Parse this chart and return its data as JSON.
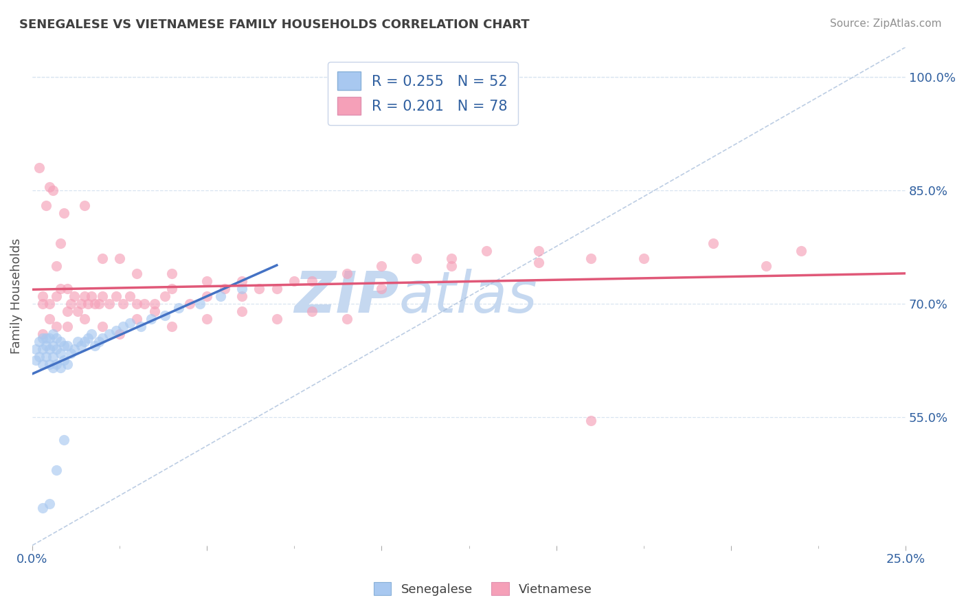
{
  "title": "SENEGALESE VS VIETNAMESE FAMILY HOUSEHOLDS CORRELATION CHART",
  "source_text": "Source: ZipAtlas.com",
  "ylabel": "Family Households",
  "xlim": [
    0.0,
    0.25
  ],
  "ylim": [
    0.38,
    1.04
  ],
  "xtick_major": [
    0.0,
    0.05,
    0.1,
    0.15,
    0.2,
    0.25
  ],
  "xticklabels_show": {
    "0.0": "0.0%",
    "0.25": "25.0%"
  },
  "ytick_positions": [
    0.55,
    0.7,
    0.85,
    1.0
  ],
  "yticklabels": [
    "55.0%",
    "70.0%",
    "85.0%",
    "100.0%"
  ],
  "senegalese_R": 0.255,
  "senegalese_N": 52,
  "vietnamese_R": 0.201,
  "vietnamese_N": 78,
  "senegalese_dot_color": "#a8c8f0",
  "vietnamese_dot_color": "#f5a0b8",
  "senegalese_line_color": "#4472c4",
  "vietnamese_line_color": "#e05878",
  "diag_line_color": "#a0b8d8",
  "watermark_color": "#c5d8f0",
  "watermark_text": "ZIPatlas",
  "grid_color": "#d8e4f0",
  "tick_color": "#3060a0",
  "title_color": "#404040",
  "source_color": "#909090",
  "legend_R_color": "#3060a0",
  "legend_N_color": "#3060a0",
  "senegalese_x": [
    0.001,
    0.001,
    0.002,
    0.002,
    0.003,
    0.003,
    0.003,
    0.004,
    0.004,
    0.004,
    0.005,
    0.005,
    0.005,
    0.006,
    0.006,
    0.006,
    0.006,
    0.007,
    0.007,
    0.007,
    0.008,
    0.008,
    0.008,
    0.009,
    0.009,
    0.01,
    0.01,
    0.011,
    0.012,
    0.013,
    0.014,
    0.015,
    0.016,
    0.017,
    0.018,
    0.019,
    0.02,
    0.022,
    0.024,
    0.026,
    0.028,
    0.031,
    0.034,
    0.038,
    0.042,
    0.048,
    0.054,
    0.06,
    0.003,
    0.005,
    0.007,
    0.009
  ],
  "senegalese_y": [
    0.625,
    0.64,
    0.63,
    0.65,
    0.62,
    0.64,
    0.655,
    0.63,
    0.645,
    0.655,
    0.62,
    0.64,
    0.655,
    0.615,
    0.63,
    0.645,
    0.66,
    0.62,
    0.64,
    0.655,
    0.615,
    0.635,
    0.65,
    0.625,
    0.645,
    0.62,
    0.645,
    0.635,
    0.64,
    0.65,
    0.645,
    0.65,
    0.655,
    0.66,
    0.645,
    0.65,
    0.655,
    0.66,
    0.665,
    0.67,
    0.675,
    0.67,
    0.68,
    0.685,
    0.695,
    0.7,
    0.71,
    0.72,
    0.43,
    0.435,
    0.48,
    0.52
  ],
  "vietnamese_x": [
    0.002,
    0.003,
    0.003,
    0.004,
    0.005,
    0.005,
    0.006,
    0.007,
    0.007,
    0.008,
    0.008,
    0.009,
    0.01,
    0.01,
    0.011,
    0.012,
    0.013,
    0.014,
    0.015,
    0.016,
    0.017,
    0.018,
    0.019,
    0.02,
    0.022,
    0.024,
    0.026,
    0.028,
    0.03,
    0.032,
    0.035,
    0.038,
    0.04,
    0.045,
    0.05,
    0.055,
    0.06,
    0.065,
    0.07,
    0.075,
    0.08,
    0.09,
    0.1,
    0.11,
    0.12,
    0.13,
    0.145,
    0.16,
    0.175,
    0.195,
    0.21,
    0.22,
    0.003,
    0.005,
    0.007,
    0.01,
    0.015,
    0.02,
    0.025,
    0.03,
    0.035,
    0.04,
    0.05,
    0.06,
    0.07,
    0.08,
    0.09,
    0.1,
    0.015,
    0.02,
    0.025,
    0.03,
    0.04,
    0.05,
    0.06,
    0.12,
    0.145,
    0.16
  ],
  "vietnamese_y": [
    0.88,
    0.7,
    0.71,
    0.83,
    0.855,
    0.7,
    0.85,
    0.75,
    0.71,
    0.78,
    0.72,
    0.82,
    0.69,
    0.72,
    0.7,
    0.71,
    0.69,
    0.7,
    0.71,
    0.7,
    0.71,
    0.7,
    0.7,
    0.71,
    0.7,
    0.71,
    0.7,
    0.71,
    0.7,
    0.7,
    0.7,
    0.71,
    0.72,
    0.7,
    0.71,
    0.72,
    0.71,
    0.72,
    0.72,
    0.73,
    0.73,
    0.74,
    0.75,
    0.76,
    0.76,
    0.77,
    0.77,
    0.76,
    0.76,
    0.78,
    0.75,
    0.77,
    0.66,
    0.68,
    0.67,
    0.67,
    0.68,
    0.67,
    0.66,
    0.68,
    0.69,
    0.67,
    0.68,
    0.69,
    0.68,
    0.69,
    0.68,
    0.72,
    0.83,
    0.76,
    0.76,
    0.74,
    0.74,
    0.73,
    0.73,
    0.75,
    0.755,
    0.545
  ]
}
